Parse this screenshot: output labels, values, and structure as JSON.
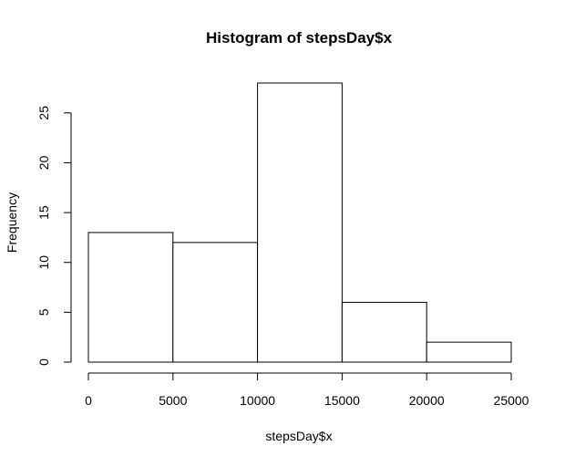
{
  "chart_data": {
    "type": "bar",
    "title": "Histogram of stepsDay$x",
    "xlabel": "stepsDay$x",
    "ylabel": "Frequency",
    "bins": [
      {
        "start": 0,
        "end": 5000,
        "count": 13
      },
      {
        "start": 5000,
        "end": 10000,
        "count": 12
      },
      {
        "start": 10000,
        "end": 15000,
        "count": 28
      },
      {
        "start": 15000,
        "end": 20000,
        "count": 6
      },
      {
        "start": 20000,
        "end": 25000,
        "count": 2
      }
    ],
    "xlim": [
      0,
      25000
    ],
    "ylim": [
      0,
      28
    ],
    "x_ticks": [
      0,
      5000,
      10000,
      15000,
      20000,
      25000
    ],
    "y_ticks": [
      0,
      5,
      10,
      15,
      20,
      25
    ],
    "grid": false,
    "colors": {
      "bar_fill": "#ffffff",
      "bar_stroke": "#000000",
      "axis": "#000000"
    }
  }
}
